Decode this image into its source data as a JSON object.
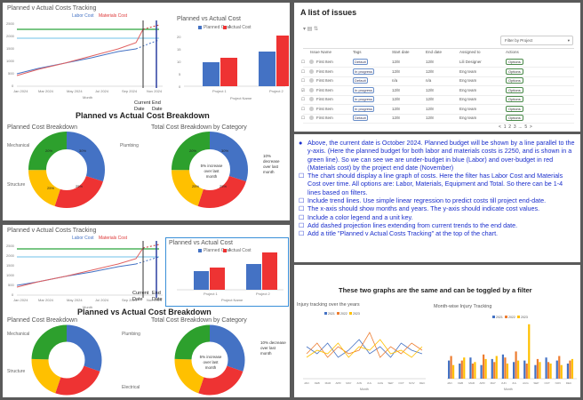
{
  "dashboard_top": {
    "line_chart_title": "Planned v Actual Costs Tracking",
    "legend": {
      "labor": "Labor Cost",
      "materials": "Materials Cost"
    },
    "y_ticks": [
      "2500",
      "2000",
      "1500",
      "1000",
      "500",
      "0"
    ],
    "x_ticks": [
      "Jan 2024",
      "Mar 2024",
      "May 2024",
      "Jul 2024",
      "Sep 2024",
      "Nov 2024"
    ],
    "x_title": "Month",
    "current_date_label": "Current Date",
    "end_date_label": "End Date",
    "bar_chart_title": "Planned vs Actual Cost",
    "bar_legend": {
      "planned": "Planned Cost",
      "actual": "Actual Cost"
    },
    "bar_y_ticks": [
      "20",
      "15",
      "10",
      "5",
      "0"
    ],
    "bar_categories": [
      "Project 1",
      "Project 2"
    ],
    "bar_x_title": "Project Name",
    "section_title": "Planned vs Actual Cost Breakdown",
    "donut1_title": "Planned Cost Breakdown",
    "donut2_title": "Total Cost Breakdown by Category",
    "donut_labels": [
      "Mechanical",
      "Plumbing",
      "Structure",
      "Electrical"
    ],
    "donut2_center": "5% increase over last month",
    "donut2_note": "10% decrease over last month",
    "donut_values": [
      "30%",
      "25%",
      "25%",
      "20%"
    ]
  },
  "dashboard_bottom": {
    "line_chart_title": "Planned v Actual Costs Tracking",
    "legend": {
      "labor": "Labor Cost",
      "materials": "Materials Cost"
    },
    "y_ticks": [
      "2500",
      "2000",
      "1500",
      "1000",
      "500",
      "0"
    ],
    "x_ticks": [
      "Jan 2024",
      "Mar 2024",
      "May 2024",
      "Jul 2024",
      "Sep 2024",
      "Nov 2024"
    ],
    "x_title": "Month",
    "current_date_label": "Current Date",
    "end_date_label": "End Date",
    "bar_chart_title": "Planned vs Actual Cost",
    "bar_legend": {
      "planned": "Planned Cost",
      "actual": "Actual Cost"
    },
    "bar_categories": [
      "Project 1",
      "Project 2"
    ],
    "bar_x_title": "Project Name",
    "section_title": "Planned vs Actual Cost Breakdown",
    "donut1_title": "Planned Cost Breakdown",
    "donut2_title": "Total Cost Breakdown by Category",
    "donut_labels": [
      "Mechanical",
      "Plumbing",
      "Structure",
      "Electrical"
    ],
    "donut2_center": "5% increase over last month",
    "donut2_note": "10% decrease over last month",
    "donut_values": [
      "30%",
      "25%",
      "25%",
      "20%"
    ]
  },
  "issues": {
    "title": "A list of issues",
    "filter_placeholder": "Filter by Project",
    "columns": [
      "Issue Name",
      "Tags",
      "Start date",
      "End date",
      "Assigned to",
      "Actions"
    ],
    "rows": [
      {
        "name": "First Item",
        "tag": "Default",
        "start": "12/8",
        "end": "12/8",
        "assignee": "Lili Designer",
        "action": "Options"
      },
      {
        "name": "First Item",
        "tag": "In progress",
        "start": "12/8",
        "end": "12/8",
        "assignee": "Eng team",
        "action": "Options"
      },
      {
        "name": "First Item",
        "tag": "Default",
        "start": "n/a",
        "end": "n/a",
        "assignee": "Eng team",
        "action": "Options"
      },
      {
        "name": "First Item",
        "tag": "In progress",
        "start": "12/8",
        "end": "12/8",
        "assignee": "Eng team",
        "action": "Options"
      },
      {
        "name": "First Item",
        "tag": "In progress",
        "start": "12/8",
        "end": "12/8",
        "assignee": "Eng team",
        "action": "Options"
      },
      {
        "name": "First Item",
        "tag": "In progress",
        "start": "12/8",
        "end": "12/8",
        "assignee": "Eng team",
        "action": "Options"
      },
      {
        "name": "First Item",
        "tag": "Default",
        "start": "12/8",
        "end": "12/8",
        "assignee": "Eng team",
        "action": "Options"
      }
    ],
    "pages": [
      "<",
      "1",
      "2",
      "3",
      "...",
      "5",
      ">"
    ]
  },
  "requirements": [
    "Above, the current date is October 2024. Planned budget will be shown by a line parallel to the y-axis. (Here the planned budget for both labor and materials costs is 2250, and is shown in a green line). So we can see we are under-budget in blue (Labor) and over-budget in red (Materials cost) by the project end date (November)",
    "The chart should display a line graph of costs. Here the filter has Labor Cost and Materials Cost over time. All options are: Labor, Materials, Equipment and Total. So there can be 1-4 lines based on filters.",
    "Include trend lines. Use simple linear regression to predict costs till project end-date.",
    "The x-axis should show months and years. The y-axis should indicate cost values.",
    "Include a color legend and a unit key.",
    "Add dashed projection lines extending from current trends to the end date.",
    "Add a title \"Planned v Actual Costs Tracking\" at the top of the chart."
  ],
  "injury": {
    "heading": "These two graphs are the same and can be toggled by a filter",
    "chart1_title": "Injury tracking over the years",
    "chart2_title": "Month-wise Injury Tracking",
    "legend": [
      "2021",
      "2022",
      "2023"
    ],
    "months": [
      "JAN",
      "FEB",
      "MAR",
      "APR",
      "MAY",
      "JUN",
      "JUL",
      "AUG",
      "SEP",
      "OCT",
      "NOV",
      "DEC"
    ],
    "x_title": "Month",
    "colors": {
      "2021": "#4472c4",
      "2022": "#ed7d31",
      "2023": "#ffc000"
    }
  }
}
